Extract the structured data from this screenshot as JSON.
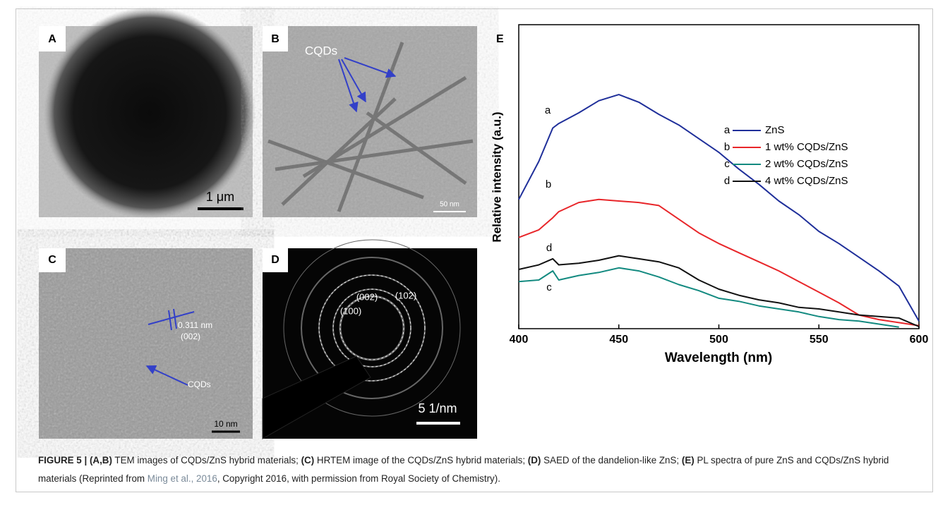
{
  "panels": {
    "A": {
      "label": "A",
      "scale_bar": "1 μm"
    },
    "B": {
      "label": "B",
      "annotation": "CQDs",
      "scale_bar": "50 nm"
    },
    "C": {
      "label": "C",
      "spacing": "0.311 nm",
      "plane": "(002)",
      "annotation": "CQDs",
      "scale_bar": "10 nm"
    },
    "D": {
      "label": "D",
      "rings": [
        "(002)",
        "(102)",
        "(100)"
      ],
      "scale_bar": "5 1/nm"
    }
  },
  "chart_data": {
    "type": "line",
    "panel_label": "E",
    "xlabel": "Wavelength (nm)",
    "ylabel": "Relative intensity (a.u.)",
    "x": [
      400,
      410,
      417,
      420,
      430,
      440,
      450,
      460,
      470,
      480,
      490,
      500,
      510,
      520,
      530,
      540,
      550,
      560,
      570,
      580,
      590,
      600
    ],
    "xlim": [
      400,
      600
    ],
    "xticks": [
      400,
      450,
      500,
      550,
      600
    ],
    "ylim": [
      0,
      100
    ],
    "series": [
      {
        "label": "a",
        "name": "ZnS",
        "color": "#1f2f9a",
        "values": [
          42.5,
          55,
          66,
          67.5,
          71,
          75,
          77,
          74.5,
          70.5,
          67,
          62.5,
          58,
          52.5,
          47.5,
          42,
          37.5,
          32,
          28,
          23.5,
          19,
          14,
          2.5
        ]
      },
      {
        "label": "b",
        "name": "1 wt% CQDs/ZnS",
        "color": "#e8262a",
        "values": [
          30,
          32.5,
          36.5,
          38.5,
          41.5,
          42.5,
          42,
          41.5,
          40.5,
          36,
          31.5,
          28,
          25,
          22,
          19,
          15.5,
          12,
          8.5,
          4.5,
          3,
          2,
          1
        ]
      },
      {
        "label": "c",
        "name": "2 wt% CQDs/ZnS",
        "color": "#138a80",
        "values": [
          15.5,
          16,
          19,
          16,
          17.5,
          18.5,
          20,
          19,
          17,
          14.5,
          12.5,
          10,
          9,
          7.5,
          6.5,
          5.5,
          4,
          3,
          2.5,
          1.5,
          0.5,
          null
        ]
      },
      {
        "label": "d",
        "name": "4 wt% CQDs/ZnS",
        "color": "#111111",
        "values": [
          19.5,
          21,
          23,
          21,
          21.5,
          22.5,
          24,
          23,
          22,
          20,
          16,
          13,
          11,
          9.5,
          8.5,
          7,
          6.5,
          5.5,
          4.5,
          4,
          3.5,
          0.7
        ]
      }
    ]
  },
  "caption": [
    {
      "text": "FIGURE 5 | (A,B)",
      "bold": true
    },
    {
      "text": " TEM images of CQDs/ZnS hybrid materials; "
    },
    {
      "text": "(C)",
      "bold": true
    },
    {
      "text": " HRTEM image of the CQDs/ZnS hybrid materials; "
    },
    {
      "text": "(D)",
      "bold": true
    },
    {
      "text": " SAED of the dandelion-like ZnS; "
    },
    {
      "text": "(E)",
      "bold": true
    },
    {
      "text": " PL spectra of pure ZnS and CQDs/ZnS hybrid materials (Reprinted from "
    },
    {
      "text": "Ming et al., 2016",
      "link": true
    },
    {
      "text": ", Copyright 2016, with permission from Royal Society of Chemistry)."
    }
  ]
}
